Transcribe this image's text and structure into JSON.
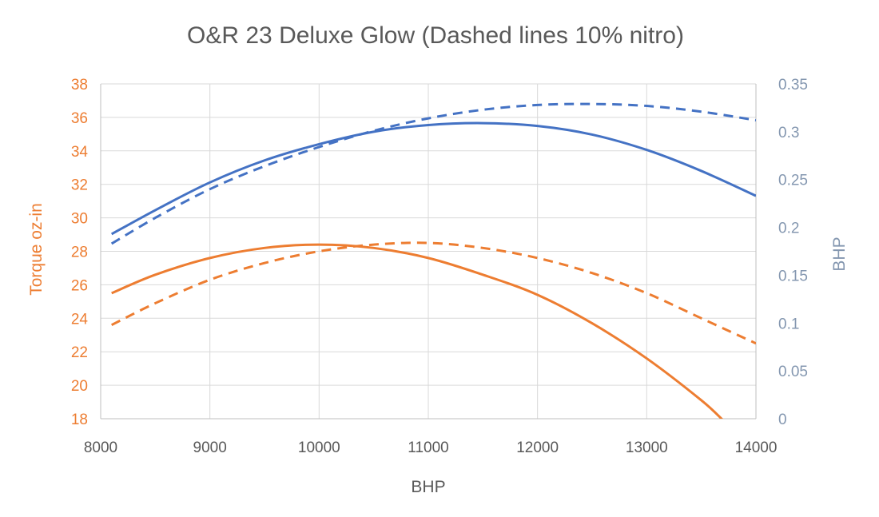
{
  "colors": {
    "torque": "#ED7D31",
    "bhp": "#4472C4",
    "grid": "#D9D9D9",
    "axis_text": "#595959",
    "y2_text": "#8497B0"
  },
  "chart_data": {
    "type": "line",
    "title": "O&R 23 Deluxe Glow (Dashed lines 10% nitro)",
    "xlabel": "BHP",
    "ylabel": "Torque oz-in",
    "y2label": "BHP",
    "xlim": [
      8000,
      14000
    ],
    "ylim": [
      18,
      38
    ],
    "y2lim": [
      0,
      0.35
    ],
    "x_ticks": [
      "8000",
      "9000",
      "10000",
      "11000",
      "12000",
      "13000",
      "14000"
    ],
    "y_ticks": [
      "18",
      "20",
      "22",
      "24",
      "26",
      "28",
      "30",
      "32",
      "34",
      "36",
      "38"
    ],
    "y2_ticks": [
      "0",
      "0.05",
      "0.1",
      "0.15",
      "0.2",
      "0.25",
      "0.3",
      "0.35"
    ],
    "grid": true,
    "series": [
      {
        "axis": "y",
        "color": "#ED7D31",
        "dashed": false,
        "x": [
          8100,
          8500,
          9000,
          9500,
          10000,
          10500,
          11000,
          11500,
          12000,
          12500,
          13000,
          13500,
          13700
        ],
        "values": [
          25.5,
          26.6,
          27.6,
          28.2,
          28.4,
          28.2,
          27.6,
          26.6,
          25.4,
          23.7,
          21.6,
          19.1,
          17.9
        ]
      },
      {
        "axis": "y",
        "color": "#ED7D31",
        "dashed": true,
        "x": [
          8100,
          8500,
          9000,
          9500,
          10000,
          10500,
          11000,
          11500,
          12000,
          12500,
          13000,
          13500,
          14000
        ],
        "values": [
          23.6,
          24.9,
          26.3,
          27.3,
          28.0,
          28.4,
          28.5,
          28.2,
          27.6,
          26.7,
          25.5,
          24.0,
          22.5
        ]
      },
      {
        "axis": "y2",
        "color": "#4472C4",
        "dashed": false,
        "x": [
          8100,
          8500,
          9000,
          9500,
          10000,
          10500,
          11000,
          11500,
          12000,
          12500,
          13000,
          13500,
          14000
        ],
        "values": [
          0.193,
          0.218,
          0.247,
          0.27,
          0.287,
          0.3,
          0.307,
          0.309,
          0.306,
          0.297,
          0.281,
          0.259,
          0.233
        ]
      },
      {
        "axis": "y2",
        "color": "#4472C4",
        "dashed": true,
        "x": [
          8100,
          8500,
          9000,
          9500,
          10000,
          10500,
          11000,
          11500,
          12000,
          12500,
          13000,
          13500,
          14000
        ],
        "values": [
          0.183,
          0.21,
          0.24,
          0.264,
          0.284,
          0.301,
          0.314,
          0.323,
          0.328,
          0.329,
          0.327,
          0.321,
          0.312
        ]
      }
    ]
  }
}
